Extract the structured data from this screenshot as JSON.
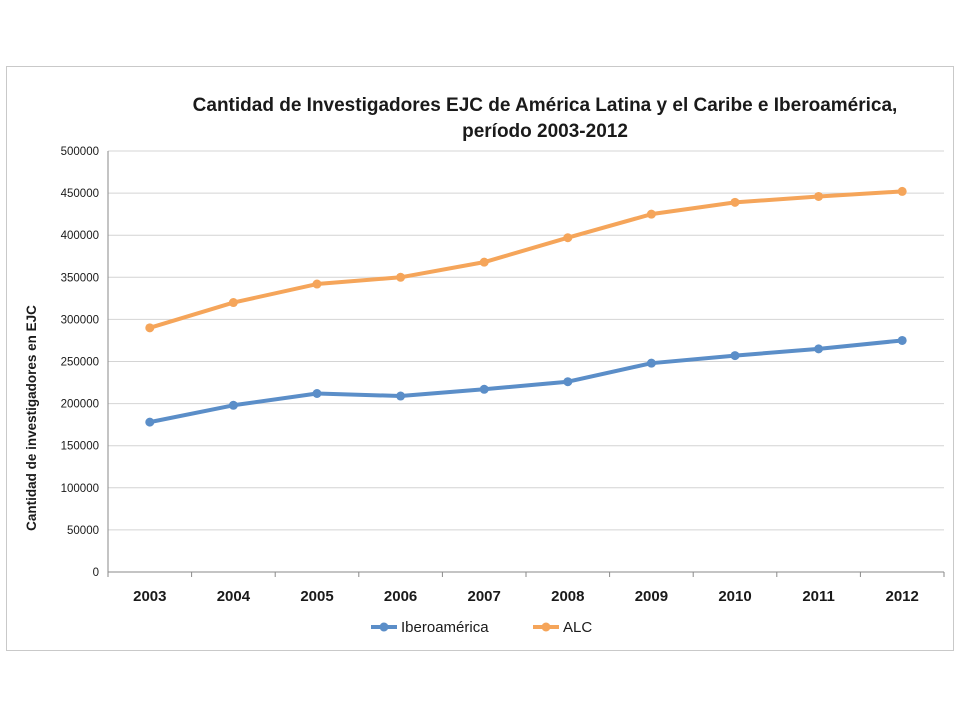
{
  "chart_data": {
    "type": "line",
    "title_lines": [
      "Cantidad de Investigadores EJC de América Latina y el Caribe e Iberoamérica,",
      "período 2003-2012"
    ],
    "xlabel": "",
    "ylabel": "Cantidad de investigadores en EJC",
    "categories": [
      "2003",
      "2004",
      "2005",
      "2006",
      "2007",
      "2008",
      "2009",
      "2010",
      "2011",
      "2012"
    ],
    "ylim": [
      0,
      500000
    ],
    "yticks": [
      "0",
      "50000",
      "100000",
      "150000",
      "200000",
      "250000",
      "300000",
      "350000",
      "400000",
      "450000",
      "500000"
    ],
    "grid": true,
    "legend_position": "bottom",
    "series": [
      {
        "name": "Iberoamérica",
        "color": "#5b8ec8",
        "values": [
          178000,
          198000,
          212000,
          209000,
          217000,
          226000,
          248000,
          257000,
          265000,
          275000
        ]
      },
      {
        "name": "ALC",
        "color": "#f5a55a",
        "values": [
          290000,
          320000,
          342000,
          350000,
          368000,
          397000,
          425000,
          439000,
          446000,
          452000
        ]
      }
    ]
  }
}
